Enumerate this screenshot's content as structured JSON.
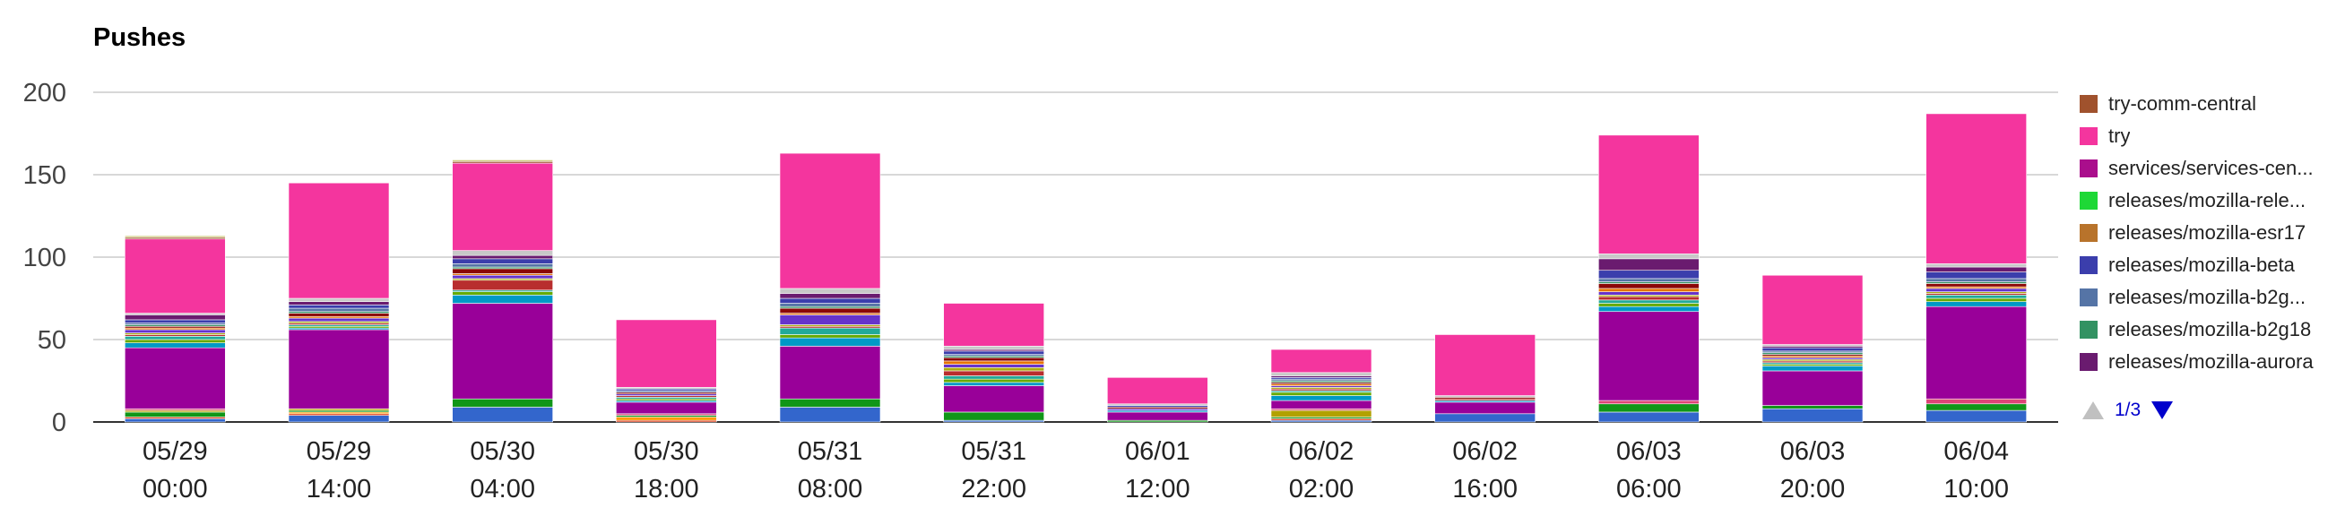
{
  "chart_data": {
    "type": "bar",
    "stacked": true,
    "title": "Pushes",
    "xlabel": "",
    "ylabel": "",
    "ylim": [
      0,
      200
    ],
    "yticks": [
      0,
      50,
      100,
      150,
      200
    ],
    "grid": true,
    "legend_position": "right",
    "categories": [
      [
        "05/29",
        "00:00"
      ],
      [
        "05/29",
        "14:00"
      ],
      [
        "05/30",
        "04:00"
      ],
      [
        "05/30",
        "18:00"
      ],
      [
        "05/31",
        "08:00"
      ],
      [
        "05/31",
        "22:00"
      ],
      [
        "06/01",
        "12:00"
      ],
      [
        "06/02",
        "02:00"
      ],
      [
        "06/02",
        "16:00"
      ],
      [
        "06/03",
        "06:00"
      ],
      [
        "06/03",
        "20:00"
      ],
      [
        "06/04",
        "10:00"
      ]
    ],
    "series": [
      {
        "name": "",
        "color": "#3366cc",
        "values": [
          2,
          4,
          9,
          0,
          9,
          1,
          0,
          1,
          5,
          6,
          8,
          7
        ]
      },
      {
        "name": "",
        "color": "#dc3912",
        "values": [
          1,
          1,
          0,
          1,
          0,
          0,
          0,
          1,
          0,
          0,
          0,
          0
        ]
      },
      {
        "name": "",
        "color": "#ff9900",
        "values": [
          0,
          1,
          0,
          2,
          0,
          0,
          0,
          0,
          0,
          0,
          0,
          0
        ]
      },
      {
        "name": "",
        "color": "#109618",
        "values": [
          3,
          1,
          5,
          1,
          5,
          5,
          1,
          1,
          0,
          5,
          2,
          4
        ]
      },
      {
        "name": "",
        "color": "#b2a100",
        "values": [
          1,
          1,
          0,
          0,
          0,
          0,
          0,
          4,
          0,
          0,
          0,
          0
        ]
      },
      {
        "name": "",
        "color": "#dd4477",
        "values": [
          1,
          0,
          0,
          1,
          0,
          0,
          0,
          1,
          0,
          2,
          0,
          3
        ]
      },
      {
        "name": "",
        "color": "#990099",
        "values": [
          37,
          48,
          58,
          7,
          32,
          16,
          5,
          5,
          7,
          54,
          21,
          56
        ]
      },
      {
        "name": "",
        "color": "#0099c6",
        "values": [
          3,
          1,
          5,
          1,
          5,
          2,
          1,
          3,
          1,
          3,
          3,
          3
        ]
      },
      {
        "name": "",
        "color": "#66aa00",
        "values": [
          2,
          1,
          2,
          1,
          2,
          2,
          0,
          2,
          0,
          2,
          1,
          2
        ]
      },
      {
        "name": "",
        "color": "#22aa99",
        "values": [
          2,
          1,
          1,
          1,
          4,
          2,
          0,
          1,
          0,
          2,
          1,
          2
        ]
      },
      {
        "name": "",
        "color": "#b82e2e",
        "values": [
          1,
          1,
          6,
          1,
          1,
          3,
          0,
          1,
          1,
          2,
          1,
          1
        ]
      },
      {
        "name": "",
        "color": "#aaaa11",
        "values": [
          1,
          1,
          1,
          0,
          1,
          2,
          0,
          1,
          0,
          1,
          1,
          1
        ]
      },
      {
        "name": "",
        "color": "#6633cc",
        "values": [
          2,
          2,
          2,
          1,
          6,
          2,
          1,
          1,
          0,
          2,
          1,
          2
        ]
      },
      {
        "name": "",
        "color": "#e67300",
        "values": [
          1,
          1,
          1,
          0,
          1,
          2,
          0,
          1,
          0,
          2,
          1,
          1
        ]
      },
      {
        "name": "",
        "color": "#8b0707",
        "values": [
          1,
          2,
          3,
          1,
          3,
          2,
          1,
          1,
          1,
          3,
          1,
          2
        ]
      },
      {
        "name": "",
        "color": "#329262",
        "values": [
          1,
          1,
          1,
          0,
          1,
          1,
          0,
          1,
          0,
          1,
          1,
          1
        ]
      },
      {
        "name": "",
        "color": "#5574a6",
        "values": [
          1,
          2,
          2,
          1,
          2,
          1,
          0,
          1,
          0,
          2,
          1,
          2
        ]
      },
      {
        "name": "",
        "color": "#3b3eac",
        "values": [
          2,
          2,
          3,
          1,
          3,
          2,
          1,
          1,
          0,
          5,
          2,
          4
        ]
      },
      {
        "name": "",
        "color": "#6a1b6f",
        "values": [
          3,
          2,
          2,
          0,
          3,
          1,
          0,
          1,
          0,
          7,
          1,
          3
        ]
      },
      {
        "name": "",
        "color": "#c8c8c8",
        "values": [
          1,
          2,
          3,
          1,
          3,
          2,
          1,
          2,
          1,
          3,
          1,
          2
        ]
      },
      {
        "name": "",
        "color": "#f4359e",
        "values": [
          45,
          70,
          53,
          41,
          82,
          26,
          16,
          14,
          37,
          72,
          42,
          91
        ]
      },
      {
        "name": "",
        "color": "#a0522d",
        "values": [
          1,
          0,
          1,
          0,
          0,
          0,
          0,
          0,
          0,
          0,
          0,
          0
        ]
      },
      {
        "name": "",
        "color": "#d0cc80",
        "values": [
          1,
          0,
          1,
          0,
          0,
          0,
          0,
          0,
          0,
          0,
          0,
          0
        ]
      }
    ],
    "legend": [
      {
        "label": "try-comm-central",
        "color": "#a0522d"
      },
      {
        "label": "try",
        "color": "#f4359e"
      },
      {
        "label": "services/services-cen...",
        "color": "#aa0e8c"
      },
      {
        "label": "releases/mozilla-rele...",
        "color": "#1ed836"
      },
      {
        "label": "releases/mozilla-esr17",
        "color": "#b8732b"
      },
      {
        "label": "releases/mozilla-beta",
        "color": "#3b3eac"
      },
      {
        "label": "releases/mozilla-b2g...",
        "color": "#5574a6"
      },
      {
        "label": "releases/mozilla-b2g18",
        "color": "#329262"
      },
      {
        "label": "releases/mozilla-aurora",
        "color": "#6a1b6f"
      }
    ]
  },
  "pager": {
    "page": "1/3"
  }
}
